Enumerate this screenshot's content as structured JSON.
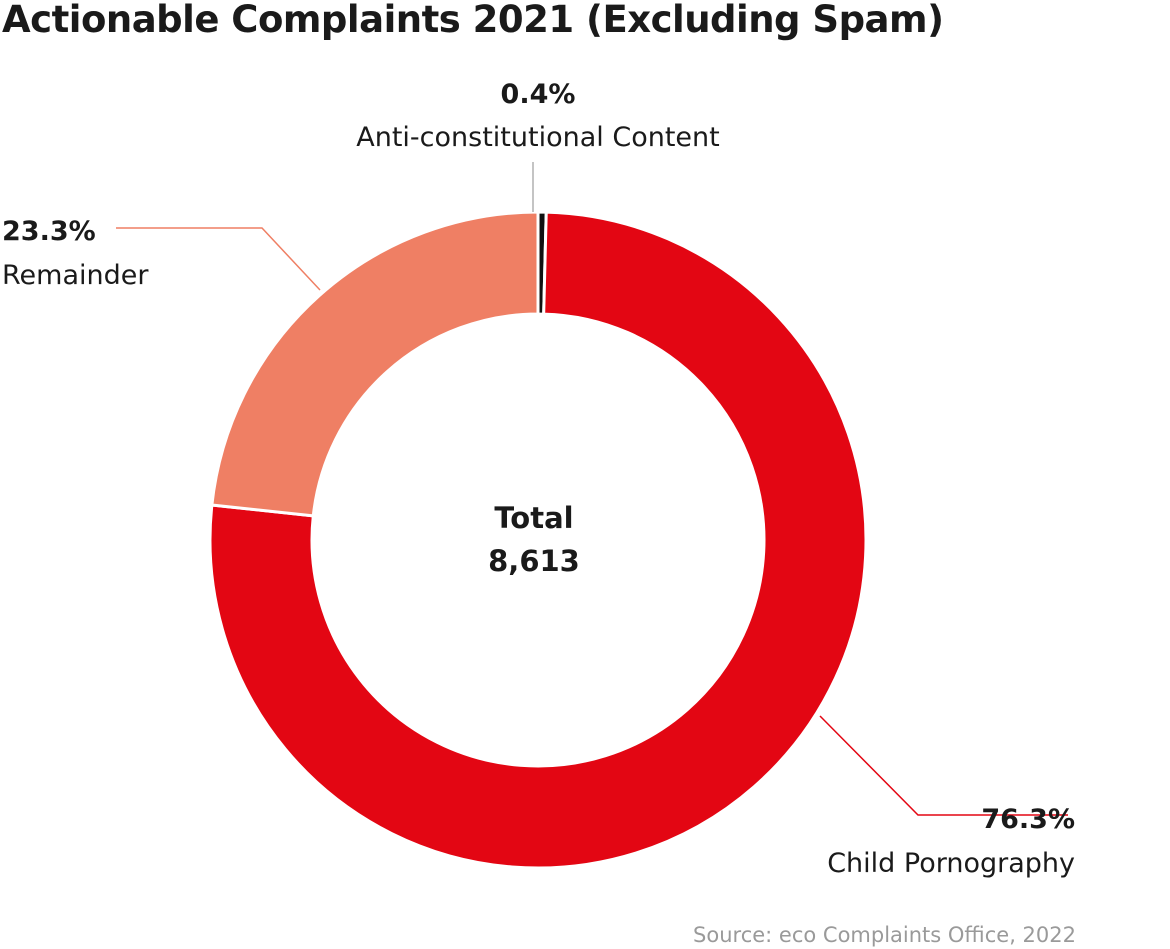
{
  "chart_data": {
    "type": "pie",
    "title": "Actionable Complaints 2021 (Excluding Spam)",
    "center_label": {
      "title": "Total",
      "value": "8,613"
    },
    "slices": [
      {
        "name": "Anti-constitutional Content",
        "value": 0.4,
        "value_label": "0.4%",
        "color": "#111111"
      },
      {
        "name": "Child Pornography",
        "value": 76.3,
        "value_label": "76.3%",
        "color": "#e30613"
      },
      {
        "name": "Remainder",
        "value": 23.3,
        "value_label": "23.3%",
        "color": "#ef7f64"
      }
    ],
    "source": "Source: eco Complaints Office, 2022"
  }
}
